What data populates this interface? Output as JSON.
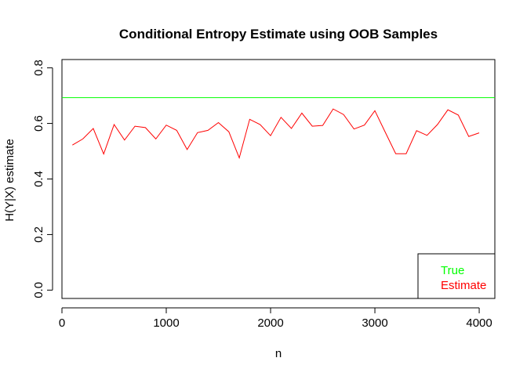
{
  "chart_data": {
    "type": "line",
    "title": "Conditional Entropy Estimate using OOB Samples",
    "xlabel": "n",
    "ylabel": "H(Y|X) estimate",
    "xlim": [
      0,
      4150
    ],
    "ylim": [
      -0.03,
      0.83
    ],
    "x_ticks": [
      0,
      1000,
      2000,
      3000,
      4000
    ],
    "x_tick_labels": [
      "0",
      "1000",
      "2000",
      "3000",
      "4000"
    ],
    "y_ticks": [
      0.0,
      0.2,
      0.4,
      0.6,
      0.8
    ],
    "y_tick_labels": [
      "0.0",
      "0.2",
      "0.4",
      "0.6",
      "0.8"
    ],
    "grid": false,
    "legend_position": "bottom-right",
    "series": [
      {
        "name": "True",
        "color": "#00ff00",
        "kind": "hline",
        "value": 0.693
      },
      {
        "name": "Estimate",
        "color": "#ff0000",
        "x": [
          100,
          200,
          300,
          400,
          500,
          600,
          700,
          800,
          900,
          1000,
          1100,
          1200,
          1300,
          1400,
          1500,
          1600,
          1700,
          1800,
          1900,
          2000,
          2100,
          2200,
          2300,
          2400,
          2500,
          2600,
          2700,
          2800,
          2900,
          3000,
          3100,
          3200,
          3300,
          3400,
          3500,
          3600,
          3700,
          3800,
          3900,
          4000
        ],
        "y": [
          0.522,
          0.544,
          0.582,
          0.49,
          0.596,
          0.54,
          0.59,
          0.585,
          0.544,
          0.594,
          0.575,
          0.506,
          0.567,
          0.575,
          0.603,
          0.57,
          0.476,
          0.615,
          0.596,
          0.556,
          0.622,
          0.582,
          0.637,
          0.59,
          0.593,
          0.652,
          0.632,
          0.58,
          0.594,
          0.646,
          0.568,
          0.491,
          0.491,
          0.574,
          0.557,
          0.596,
          0.649,
          0.63,
          0.553,
          0.566
        ]
      }
    ]
  }
}
